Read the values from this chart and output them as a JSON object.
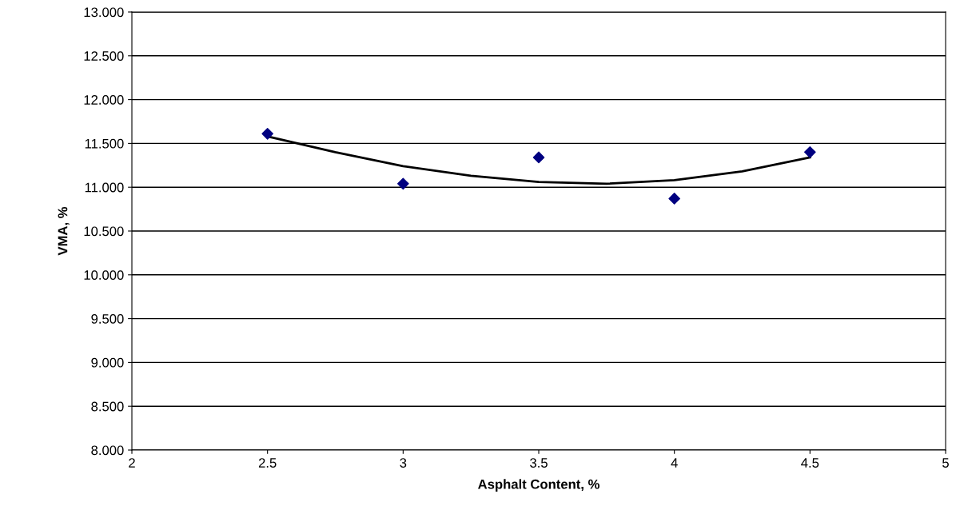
{
  "chart_data": {
    "type": "scatter",
    "xlabel": "Asphalt Content, %",
    "ylabel": "VMA, %",
    "series": [
      {
        "color": "#000080",
        "marker": "diamond",
        "x": [
          2.5,
          3,
          3.5,
          4,
          4.5
        ],
        "values": [
          11.61,
          11.04,
          11.34,
          10.87,
          11.4
        ]
      },
      {
        "type": "line",
        "color": "#000000",
        "marker": "none",
        "line_style": "solid",
        "x": [
          2.5,
          2.75,
          3.0,
          3.25,
          3.5,
          3.75,
          4.0,
          4.25,
          4.5
        ],
        "values": [
          11.58,
          11.4,
          11.24,
          11.13,
          11.06,
          11.04,
          11.08,
          11.18,
          11.34
        ]
      }
    ],
    "xlim": [
      2,
      5
    ],
    "xticks": [
      2,
      2.5,
      3,
      3.5,
      4,
      4.5,
      5
    ],
    "ylim": [
      8,
      13
    ],
    "yticks": [
      {
        "value": 8,
        "label": "8.000"
      },
      {
        "value": 8.5,
        "label": "8.500"
      },
      {
        "value": 9,
        "label": "9.000"
      },
      {
        "value": 9.5,
        "label": "9.500"
      },
      {
        "value": 10,
        "label": "10.000"
      },
      {
        "value": 10.5,
        "label": "10.500"
      },
      {
        "value": 11,
        "label": "11.000"
      },
      {
        "value": 11.5,
        "label": "11.500"
      },
      {
        "value": 12,
        "label": "12.000"
      },
      {
        "value": 12.5,
        "label": "12.500"
      },
      {
        "value": 13,
        "label": "13.000"
      }
    ],
    "grid": "y",
    "legend": false
  }
}
